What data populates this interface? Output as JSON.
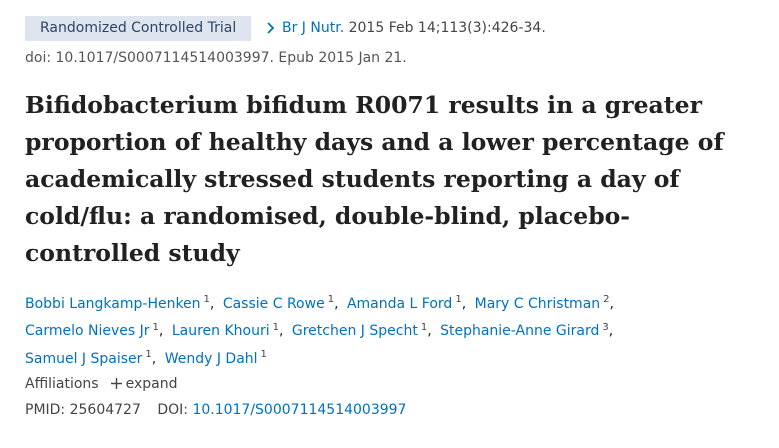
{
  "header": {
    "badge": "Randomized Controlled Trial",
    "journal": "Br J Nutr.",
    "citation": "2015 Feb 14;113(3):426-34.",
    "doi_line": "doi: 10.1017/S0007114514003997. Epub 2015 Jan 21."
  },
  "title": "Bifidobacterium bifidum R0071 results in a greater proportion of healthy days and a lower percentage of academically stressed students reporting a day of cold/flu: a randomised, double-blind, placebo-controlled study",
  "authors": [
    {
      "name": "Bobbi Langkamp-Henken",
      "affiliation": "1"
    },
    {
      "name": "Cassie C Rowe",
      "affiliation": "1"
    },
    {
      "name": "Amanda L Ford",
      "affiliation": "1"
    },
    {
      "name": "Mary C Christman",
      "affiliation": "2"
    },
    {
      "name": "Carmelo Nieves Jr",
      "affiliation": "1"
    },
    {
      "name": "Lauren Khouri",
      "affiliation": "1"
    },
    {
      "name": "Gretchen J Specht",
      "affiliation": "1"
    },
    {
      "name": "Stephanie-Anne Girard",
      "affiliation": "3"
    },
    {
      "name": "Samuel J Spaiser",
      "affiliation": "1"
    },
    {
      "name": "Wendy J Dahl",
      "affiliation": "1"
    }
  ],
  "affiliations": {
    "label": "Affiliations",
    "toggle": "expand"
  },
  "identifiers": {
    "pmid_label": "PMID:",
    "pmid": "25604727",
    "doi_label": "DOI:",
    "doi": "10.1017/S0007114514003997"
  }
}
